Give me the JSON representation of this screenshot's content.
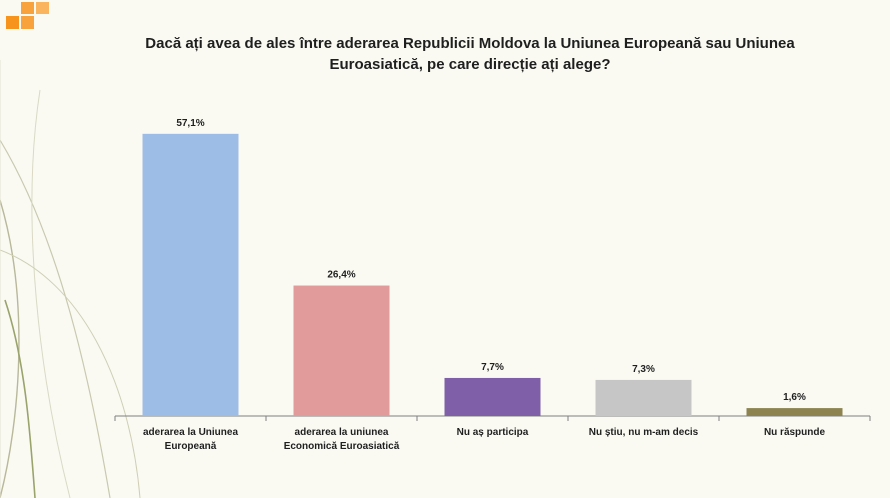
{
  "slide": {
    "accent_color": "#f7941d",
    "background_color": "#fafaf3"
  },
  "chart_data": {
    "type": "bar",
    "title_line1": "Dacă ați avea de ales între aderarea Republicii Moldova  la Uniunea Europeană sau Uniunea",
    "title_line2": "Euroasiatică, pe care direcție ați alege?",
    "categories": [
      [
        "aderarea la Uniunea",
        "Europeană"
      ],
      [
        "aderarea la uniunea",
        "Economică Euroasiatică"
      ],
      [
        "Nu aș participa"
      ],
      [
        "Nu știu, nu m-am decis"
      ],
      [
        "Nu răspunde"
      ]
    ],
    "values": [
      57.1,
      26.4,
      7.7,
      7.3,
      1.6
    ],
    "value_labels": [
      "57,1%",
      "26,4%",
      "7,7%",
      "7,3%",
      "1,6%"
    ],
    "colors": [
      "#9dbde6",
      "#e29b9b",
      "#7f5fa7",
      "#c6c6c6",
      "#8c8350"
    ],
    "ylim": [
      0,
      60
    ],
    "grid": false,
    "legend": "none"
  }
}
